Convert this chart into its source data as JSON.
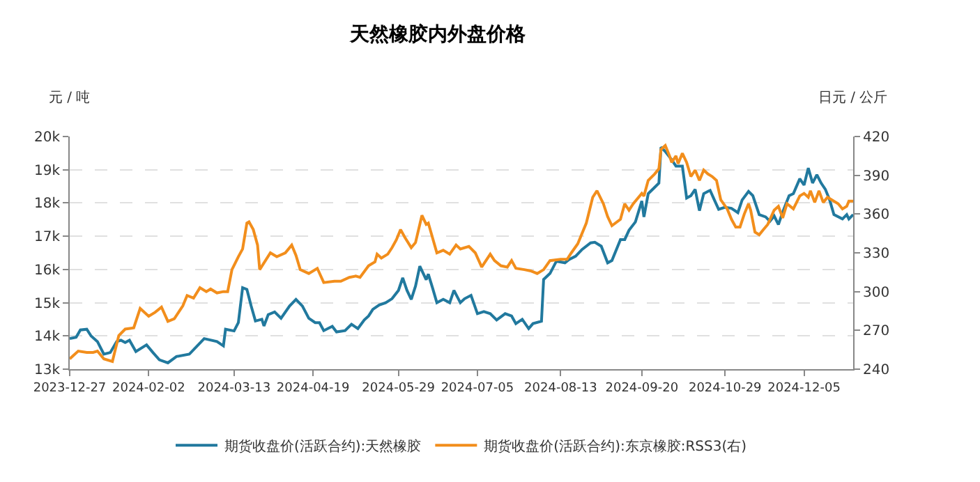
{
  "chart_data": {
    "type": "line",
    "title": "天然橡胶内外盘价格",
    "ylabel": "元 / 吨",
    "y2label": "日元 / 公斤",
    "xlim": [
      "2023-12-27",
      "2024-12-28"
    ],
    "xticks": [
      "2023-12-27",
      "2024-02-02",
      "2024-03-13",
      "2024-04-19",
      "2024-05-29",
      "2024-07-05",
      "2024-08-13",
      "2024-09-20",
      "2024-10-29",
      "2024-12-05"
    ],
    "ylim": [
      13000,
      20000
    ],
    "yticks": [
      {
        "value": 13000,
        "label": "13k"
      },
      {
        "value": 14000,
        "label": "14k"
      },
      {
        "value": 15000,
        "label": "15k"
      },
      {
        "value": 16000,
        "label": "16k"
      },
      {
        "value": 17000,
        "label": "17k"
      },
      {
        "value": 18000,
        "label": "18k"
      },
      {
        "value": 19000,
        "label": "19k"
      },
      {
        "value": 20000,
        "label": "20k"
      }
    ],
    "y2lim": [
      240,
      420
    ],
    "y2ticks": [
      240,
      270,
      300,
      330,
      360,
      390,
      420
    ],
    "grid": "y",
    "legend": "bottom",
    "marker": "none",
    "line_style": "solid",
    "series": [
      {
        "name": "期货收盘价(活跃合约):天然橡胶",
        "color": "#21799e",
        "x": [
          "2023-12-27",
          "2023-12-30",
          "2024-01-01",
          "2024-01-04",
          "2024-01-06",
          "2024-01-09",
          "2024-01-12",
          "2024-01-15",
          "2024-01-18",
          "2024-01-20",
          "2024-01-22",
          "2024-01-24",
          "2024-01-27",
          "2024-02-01",
          "2024-02-04",
          "2024-02-07",
          "2024-02-11",
          "2024-02-15",
          "2024-02-21",
          "2024-02-28",
          "2024-03-05",
          "2024-03-08",
          "2024-03-09",
          "2024-03-13",
          "2024-03-15",
          "2024-03-17",
          "2024-03-19",
          "2024-03-21",
          "2024-03-23",
          "2024-03-26",
          "2024-03-27",
          "2024-03-29",
          "2024-04-01",
          "2024-04-04",
          "2024-04-08",
          "2024-04-11",
          "2024-04-14",
          "2024-04-17",
          "2024-04-20",
          "2024-04-22",
          "2024-04-24",
          "2024-04-28",
          "2024-04-30",
          "2024-05-04",
          "2024-05-07",
          "2024-05-10",
          "2024-05-13",
          "2024-05-15",
          "2024-05-17",
          "2024-05-20",
          "2024-05-23",
          "2024-05-26",
          "2024-05-29",
          "2024-05-31",
          "2024-06-02",
          "2024-06-04",
          "2024-06-06",
          "2024-06-08",
          "2024-06-11",
          "2024-06-12",
          "2024-06-14",
          "2024-06-16",
          "2024-06-19",
          "2024-06-22",
          "2024-06-24",
          "2024-06-27",
          "2024-06-29",
          "2024-07-02",
          "2024-07-05",
          "2024-07-08",
          "2024-07-11",
          "2024-07-14",
          "2024-07-18",
          "2024-07-21",
          "2024-07-23",
          "2024-07-26",
          "2024-07-29",
          "2024-07-31",
          "2024-08-04",
          "2024-08-05",
          "2024-08-08",
          "2024-08-11",
          "2024-08-15",
          "2024-08-17",
          "2024-08-20",
          "2024-08-23",
          "2024-08-27",
          "2024-08-29",
          "2024-09-01",
          "2024-09-04",
          "2024-09-06",
          "2024-09-10",
          "2024-09-12",
          "2024-09-14",
          "2024-09-17",
          "2024-09-20",
          "2024-09-21",
          "2024-09-23",
          "2024-09-26",
          "2024-09-28",
          "2024-09-29",
          "2024-10-01",
          "2024-10-04",
          "2024-10-06",
          "2024-10-09",
          "2024-10-11",
          "2024-10-13",
          "2024-10-15",
          "2024-10-17",
          "2024-10-19",
          "2024-10-21",
          "2024-10-22",
          "2024-10-24",
          "2024-10-26",
          "2024-10-29",
          "2024-11-01",
          "2024-11-04",
          "2024-11-06",
          "2024-11-09",
          "2024-11-11",
          "2024-11-14",
          "2024-11-17",
          "2024-11-19",
          "2024-11-21",
          "2024-11-23",
          "2024-11-25",
          "2024-11-28",
          "2024-11-30",
          "2024-12-03",
          "2024-12-05",
          "2024-12-07",
          "2024-12-09",
          "2024-12-11",
          "2024-12-13",
          "2024-12-15",
          "2024-12-17",
          "2024-12-19",
          "2024-12-23",
          "2024-12-25",
          "2024-12-26",
          "2024-12-28"
        ],
        "values": [
          13920,
          13960,
          14180,
          14200,
          14000,
          13830,
          13450,
          13500,
          13830,
          13870,
          13800,
          13870,
          13530,
          13730,
          13500,
          13280,
          13190,
          13380,
          13450,
          13920,
          13830,
          13700,
          14200,
          14150,
          14400,
          15450,
          15400,
          14900,
          14450,
          14500,
          14300,
          14640,
          14720,
          14530,
          14900,
          15100,
          14900,
          14530,
          14400,
          14400,
          14160,
          14290,
          14120,
          14160,
          14350,
          14220,
          14480,
          14600,
          14800,
          14930,
          15000,
          15120,
          15370,
          15750,
          15370,
          15100,
          15500,
          16100,
          15690,
          15860,
          15440,
          15000,
          15100,
          15000,
          15370,
          15000,
          15120,
          15220,
          14670,
          14730,
          14670,
          14480,
          14670,
          14600,
          14370,
          14500,
          14220,
          14370,
          14440,
          15700,
          15880,
          16250,
          16200,
          16300,
          16400,
          16600,
          16800,
          16820,
          16700,
          16200,
          16270,
          16900,
          16900,
          17180,
          17430,
          18060,
          17580,
          18280,
          18470,
          18600,
          19680,
          19550,
          19300,
          19110,
          19110,
          18150,
          18220,
          18410,
          17770,
          18280,
          18350,
          18380,
          18090,
          17810,
          17870,
          17840,
          17710,
          18090,
          18350,
          18220,
          17650,
          17580,
          17450,
          17610,
          17350,
          17730,
          18220,
          18280,
          18730,
          18540,
          19050,
          18600,
          18850,
          18600,
          18410,
          18090,
          17650,
          17520,
          17650,
          17520,
          17650
        ]
      },
      {
        "name": "期货收盘价(活跃合约):东京橡胶:RSS3(右)",
        "color": "#f28e1c",
        "axis": "y2",
        "x": [
          "2023-12-27",
          "2023-12-31",
          "2024-01-04",
          "2024-01-07",
          "2024-01-09",
          "2024-01-12",
          "2024-01-16",
          "2024-01-19",
          "2024-01-22",
          "2024-01-26",
          "2024-01-29",
          "2024-02-02",
          "2024-02-05",
          "2024-02-08",
          "2024-02-11",
          "2024-02-14",
          "2024-02-18",
          "2024-02-20",
          "2024-02-23",
          "2024-02-26",
          "2024-02-29",
          "2024-03-02",
          "2024-03-05",
          "2024-03-08",
          "2024-03-10",
          "2024-03-12",
          "2024-03-15",
          "2024-03-17",
          "2024-03-19",
          "2024-03-20",
          "2024-03-22",
          "2024-03-24",
          "2024-03-25",
          "2024-03-30",
          "2024-04-02",
          "2024-04-06",
          "2024-04-09",
          "2024-04-11",
          "2024-04-13",
          "2024-04-17",
          "2024-04-21",
          "2024-04-24",
          "2024-04-29",
          "2024-05-02",
          "2024-05-06",
          "2024-05-09",
          "2024-05-11",
          "2024-05-15",
          "2024-05-18",
          "2024-05-19",
          "2024-05-21",
          "2024-05-24",
          "2024-05-26",
          "2024-05-28",
          "2024-05-30",
          "2024-06-01",
          "2024-06-04",
          "2024-06-06",
          "2024-06-09",
          "2024-06-11",
          "2024-06-12",
          "2024-06-16",
          "2024-06-19",
          "2024-06-22",
          "2024-06-25",
          "2024-06-27",
          "2024-07-01",
          "2024-07-04",
          "2024-07-07",
          "2024-07-11",
          "2024-07-13",
          "2024-07-16",
          "2024-07-19",
          "2024-07-21",
          "2024-07-23",
          "2024-07-27",
          "2024-07-30",
          "2024-08-02",
          "2024-08-05",
          "2024-08-08",
          "2024-08-13",
          "2024-08-16",
          "2024-08-18",
          "2024-08-21",
          "2024-08-25",
          "2024-08-28",
          "2024-08-30",
          "2024-09-02",
          "2024-09-04",
          "2024-09-06",
          "2024-09-10",
          "2024-09-12",
          "2024-09-14",
          "2024-09-16",
          "2024-09-20",
          "2024-09-21",
          "2024-09-23",
          "2024-09-26",
          "2024-09-28",
          "2024-09-29",
          "2024-10-01",
          "2024-10-03",
          "2024-10-04",
          "2024-10-06",
          "2024-10-07",
          "2024-10-09",
          "2024-10-11",
          "2024-10-13",
          "2024-10-15",
          "2024-10-17",
          "2024-10-19",
          "2024-10-21",
          "2024-10-23",
          "2024-10-25",
          "2024-10-27",
          "2024-10-30",
          "2024-11-01",
          "2024-11-03",
          "2024-11-05",
          "2024-11-07",
          "2024-11-09",
          "2024-11-10",
          "2024-11-12",
          "2024-11-14",
          "2024-11-16",
          "2024-11-18",
          "2024-11-21",
          "2024-11-23",
          "2024-11-25",
          "2024-11-27",
          "2024-11-30",
          "2024-12-03",
          "2024-12-05",
          "2024-12-07",
          "2024-12-08",
          "2024-12-10",
          "2024-12-12",
          "2024-12-14",
          "2024-12-16",
          "2024-12-18",
          "2024-12-21",
          "2024-12-23",
          "2024-12-25",
          "2024-12-26",
          "2024-12-28"
        ],
        "values": [
          248,
          254,
          253,
          253,
          254,
          248,
          246,
          266,
          271,
          272,
          287,
          281,
          284,
          288,
          277,
          279,
          289,
          297,
          295,
          303,
          300,
          302,
          299,
          300,
          300,
          317,
          327,
          333,
          353,
          354,
          348,
          336,
          317,
          330,
          327,
          330,
          336,
          328,
          317,
          314,
          318,
          307,
          308,
          308,
          311,
          312,
          311,
          320,
          323,
          329,
          326,
          329,
          334,
          340,
          348,
          342,
          334,
          338,
          359,
          352,
          353,
          330,
          332,
          329,
          336,
          333,
          335,
          330,
          319,
          329,
          324,
          320,
          319,
          324,
          318,
          317,
          316,
          314,
          317,
          324,
          325,
          325,
          330,
          337,
          353,
          373,
          378,
          368,
          358,
          351,
          356,
          368,
          363,
          368,
          376,
          374,
          386,
          391,
          395,
          410,
          413,
          405,
          400,
          405,
          399,
          407,
          400,
          389,
          394,
          386,
          394,
          391,
          389,
          386,
          371,
          364,
          356,
          350,
          350,
          360,
          368,
          363,
          346,
          344,
          348,
          352,
          363,
          366,
          357,
          368,
          364,
          374,
          376,
          373,
          378,
          369,
          378,
          369,
          373,
          371,
          368,
          364,
          366,
          370,
          370
        ]
      }
    ]
  }
}
